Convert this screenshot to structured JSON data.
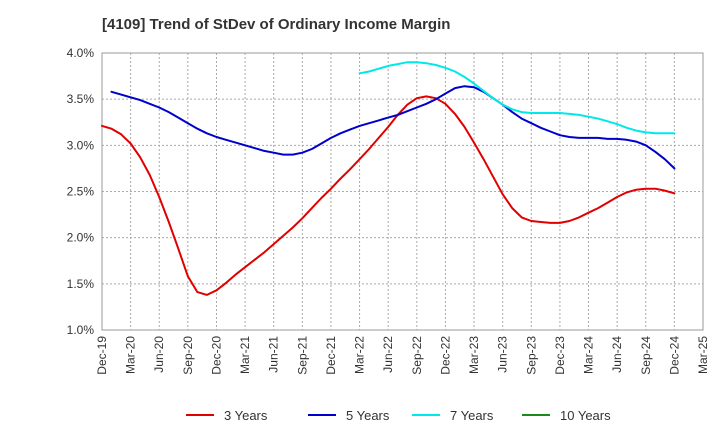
{
  "chart_data": {
    "type": "line",
    "title": "[4109]  Trend of StDev of Ordinary Income Margin",
    "xlabel": "",
    "ylabel": "",
    "ylim": [
      1.0,
      4.0
    ],
    "y_ticks": [
      "1.0%",
      "1.5%",
      "2.0%",
      "2.5%",
      "3.0%",
      "3.5%",
      "4.0%"
    ],
    "x_ticks": [
      "Dec-19",
      "Mar-20",
      "Jun-20",
      "Sep-20",
      "Dec-20",
      "Mar-21",
      "Jun-21",
      "Sep-21",
      "Dec-21",
      "Mar-22",
      "Jun-22",
      "Sep-22",
      "Dec-22",
      "Mar-23",
      "Jun-23",
      "Sep-23",
      "Dec-23",
      "Mar-24",
      "Jun-24",
      "Sep-24",
      "Dec-24",
      "Mar-25"
    ],
    "grid": true,
    "legend_position": "bottom",
    "series": [
      {
        "name": "3 Years",
        "color": "#e00000",
        "points": [
          [
            "Dec-19",
            3.21
          ],
          [
            "Jan-20",
            3.18
          ],
          [
            "Feb-20",
            3.12
          ],
          [
            "Mar-20",
            3.02
          ],
          [
            "Apr-20",
            2.87
          ],
          [
            "May-20",
            2.68
          ],
          [
            "Jun-20",
            2.44
          ],
          [
            "Jul-20",
            2.17
          ],
          [
            "Aug-20",
            1.88
          ],
          [
            "Sep-20",
            1.58
          ],
          [
            "Oct-20",
            1.41
          ],
          [
            "Nov-20",
            1.38
          ],
          [
            "Dec-20",
            1.43
          ],
          [
            "Jan-21",
            1.51
          ],
          [
            "Feb-21",
            1.6
          ],
          [
            "Mar-21",
            1.68
          ],
          [
            "Apr-21",
            1.76
          ],
          [
            "May-21",
            1.84
          ],
          [
            "Jun-21",
            1.93
          ],
          [
            "Jul-21",
            2.02
          ],
          [
            "Aug-21",
            2.11
          ],
          [
            "Sep-21",
            2.21
          ],
          [
            "Oct-21",
            2.32
          ],
          [
            "Nov-21",
            2.43
          ],
          [
            "Dec-21",
            2.53
          ],
          [
            "Jan-22",
            2.64
          ],
          [
            "Feb-22",
            2.74
          ],
          [
            "Mar-22",
            2.85
          ],
          [
            "Apr-22",
            2.96
          ],
          [
            "May-22",
            3.08
          ],
          [
            "Jun-22",
            3.2
          ],
          [
            "Jul-22",
            3.33
          ],
          [
            "Aug-22",
            3.44
          ],
          [
            "Sep-22",
            3.51
          ],
          [
            "Oct-22",
            3.53
          ],
          [
            "Nov-22",
            3.51
          ],
          [
            "Dec-22",
            3.45
          ],
          [
            "Jan-23",
            3.34
          ],
          [
            "Feb-23",
            3.2
          ],
          [
            "Mar-23",
            3.03
          ],
          [
            "Apr-23",
            2.85
          ],
          [
            "May-23",
            2.66
          ],
          [
            "Jun-23",
            2.47
          ],
          [
            "Jul-23",
            2.32
          ],
          [
            "Aug-23",
            2.22
          ],
          [
            "Sep-23",
            2.18
          ],
          [
            "Oct-23",
            2.17
          ],
          [
            "Nov-23",
            2.16
          ],
          [
            "Dec-23",
            2.16
          ],
          [
            "Jan-24",
            2.18
          ],
          [
            "Feb-24",
            2.22
          ],
          [
            "Mar-24",
            2.27
          ],
          [
            "Apr-24",
            2.32
          ],
          [
            "May-24",
            2.38
          ],
          [
            "Jun-24",
            2.44
          ],
          [
            "Jul-24",
            2.49
          ],
          [
            "Aug-24",
            2.52
          ],
          [
            "Sep-24",
            2.53
          ],
          [
            "Oct-24",
            2.53
          ],
          [
            "Nov-24",
            2.51
          ],
          [
            "Dec-24",
            2.48
          ]
        ]
      },
      {
        "name": "5 Years",
        "color": "#0000cc",
        "points": [
          [
            "Jan-20",
            3.58
          ],
          [
            "Feb-20",
            3.55
          ],
          [
            "Mar-20",
            3.52
          ],
          [
            "Apr-20",
            3.49
          ],
          [
            "May-20",
            3.45
          ],
          [
            "Jun-20",
            3.41
          ],
          [
            "Jul-20",
            3.36
          ],
          [
            "Aug-20",
            3.3
          ],
          [
            "Sep-20",
            3.24
          ],
          [
            "Oct-20",
            3.18
          ],
          [
            "Nov-20",
            3.13
          ],
          [
            "Dec-20",
            3.09
          ],
          [
            "Jan-21",
            3.06
          ],
          [
            "Feb-21",
            3.03
          ],
          [
            "Mar-21",
            3.0
          ],
          [
            "Apr-21",
            2.97
          ],
          [
            "May-21",
            2.94
          ],
          [
            "Jun-21",
            2.92
          ],
          [
            "Jul-21",
            2.9
          ],
          [
            "Aug-21",
            2.9
          ],
          [
            "Sep-21",
            2.92
          ],
          [
            "Oct-21",
            2.96
          ],
          [
            "Nov-21",
            3.02
          ],
          [
            "Dec-21",
            3.08
          ],
          [
            "Jan-22",
            3.13
          ],
          [
            "Feb-22",
            3.17
          ],
          [
            "Mar-22",
            3.21
          ],
          [
            "Apr-22",
            3.24
          ],
          [
            "May-22",
            3.27
          ],
          [
            "Jun-22",
            3.3
          ],
          [
            "Jul-22",
            3.33
          ],
          [
            "Aug-22",
            3.37
          ],
          [
            "Sep-22",
            3.41
          ],
          [
            "Oct-22",
            3.45
          ],
          [
            "Nov-22",
            3.5
          ],
          [
            "Dec-22",
            3.56
          ],
          [
            "Jan-23",
            3.62
          ],
          [
            "Feb-23",
            3.64
          ],
          [
            "Mar-23",
            3.63
          ],
          [
            "Apr-23",
            3.58
          ],
          [
            "May-23",
            3.51
          ],
          [
            "Jun-23",
            3.44
          ],
          [
            "Jul-23",
            3.36
          ],
          [
            "Aug-23",
            3.29
          ],
          [
            "Sep-23",
            3.24
          ],
          [
            "Oct-23",
            3.19
          ],
          [
            "Nov-23",
            3.15
          ],
          [
            "Dec-23",
            3.11
          ],
          [
            "Jan-24",
            3.09
          ],
          [
            "Feb-24",
            3.08
          ],
          [
            "Mar-24",
            3.08
          ],
          [
            "Apr-24",
            3.08
          ],
          [
            "May-24",
            3.07
          ],
          [
            "Jun-24",
            3.07
          ],
          [
            "Jul-24",
            3.06
          ],
          [
            "Aug-24",
            3.04
          ],
          [
            "Sep-24",
            3.0
          ],
          [
            "Oct-24",
            2.93
          ],
          [
            "Nov-24",
            2.85
          ],
          [
            "Dec-24",
            2.75
          ]
        ]
      },
      {
        "name": "7 Years",
        "color": "#00e8e8",
        "points": [
          [
            "Mar-22",
            3.78
          ],
          [
            "Apr-22",
            3.8
          ],
          [
            "May-22",
            3.83
          ],
          [
            "Jun-22",
            3.86
          ],
          [
            "Jul-22",
            3.88
          ],
          [
            "Aug-22",
            3.9
          ],
          [
            "Sep-22",
            3.9
          ],
          [
            "Oct-22",
            3.89
          ],
          [
            "Nov-22",
            3.87
          ],
          [
            "Dec-22",
            3.84
          ],
          [
            "Jan-23",
            3.8
          ],
          [
            "Feb-23",
            3.74
          ],
          [
            "Mar-23",
            3.67
          ],
          [
            "Apr-23",
            3.59
          ],
          [
            "May-23",
            3.51
          ],
          [
            "Jun-23",
            3.44
          ],
          [
            "Jul-23",
            3.39
          ],
          [
            "Aug-23",
            3.36
          ],
          [
            "Sep-23",
            3.35
          ],
          [
            "Oct-23",
            3.35
          ],
          [
            "Nov-23",
            3.35
          ],
          [
            "Dec-23",
            3.35
          ],
          [
            "Jan-24",
            3.34
          ],
          [
            "Feb-24",
            3.33
          ],
          [
            "Mar-24",
            3.31
          ],
          [
            "Apr-24",
            3.29
          ],
          [
            "May-24",
            3.26
          ],
          [
            "Jun-24",
            3.23
          ],
          [
            "Jul-24",
            3.19
          ],
          [
            "Aug-24",
            3.16
          ],
          [
            "Sep-24",
            3.14
          ],
          [
            "Oct-24",
            3.13
          ],
          [
            "Nov-24",
            3.13
          ],
          [
            "Dec-24",
            3.13
          ]
        ]
      },
      {
        "name": "10 Years",
        "color": "#1a8a1a",
        "points": []
      }
    ]
  }
}
